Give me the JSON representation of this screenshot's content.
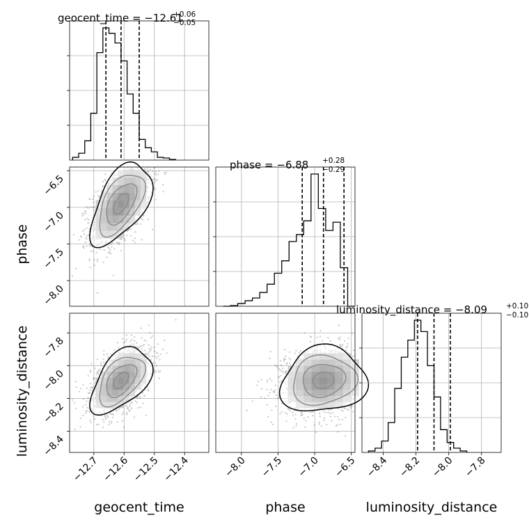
{
  "chart_data": {
    "type": "corner",
    "parameters": [
      "geocent_time",
      "phase",
      "luminosity_distance"
    ],
    "titles": [
      {
        "param": "geocent_time",
        "label": "geocent_time",
        "median": "−12.61",
        "plus": "+0.06",
        "minus": "−0.05"
      },
      {
        "param": "phase",
        "label": "phase",
        "median": "−6.88",
        "plus": "+0.28",
        "minus": "−0.29"
      },
      {
        "param": "luminosity_distance",
        "label": "luminosity_distance",
        "median": "−8.09",
        "plus": "+0.10",
        "minus": "−0.10"
      }
    ],
    "ranges": {
      "geocent_time": [
        -12.78,
        -12.32
      ],
      "phase": [
        -8.35,
        -6.45
      ],
      "luminosity_distance": [
        -8.53,
        -7.68
      ]
    },
    "ticks": {
      "geocent_time": [
        -12.7,
        -12.6,
        -12.5,
        -12.4
      ],
      "phase": [
        -8.0,
        -7.5,
        -7.0,
        -6.5
      ],
      "luminosity_distance": [
        -8.4,
        -8.2,
        -8.0,
        -7.8
      ]
    },
    "tick_labels": {
      "geocent_time": [
        "−12.7",
        "−12.6",
        "−12.5",
        "−12.4"
      ],
      "phase": [
        "−8.0",
        "−7.5",
        "−7.0",
        "−6.5"
      ],
      "luminosity_distance": [
        "−8.4",
        "−8.2",
        "−8.0",
        "−7.8"
      ]
    },
    "quantiles": {
      "geocent_time": [
        -12.66,
        -12.61,
        -12.55
      ],
      "phase": [
        -7.17,
        -6.88,
        -6.6
      ],
      "luminosity_distance": [
        -8.19,
        -8.09,
        -7.99
      ]
    },
    "histograms": {
      "geocent_time": {
        "edges_start": -12.77,
        "bin_width": 0.02,
        "counts": [
          0.02,
          0.05,
          0.14,
          0.34,
          0.78,
          0.96,
          0.92,
          0.85,
          0.72,
          0.48,
          0.34,
          0.15,
          0.09,
          0.06,
          0.02,
          0.015,
          0.005
        ]
      },
      "phase": {
        "edges_start": -8.25,
        "bin_width": 0.1,
        "counts": [
          0.0,
          0.005,
          0.02,
          0.04,
          0.06,
          0.1,
          0.16,
          0.24,
          0.33,
          0.47,
          0.52,
          0.62,
          0.96,
          0.71,
          0.55,
          0.61,
          0.28,
          0.0
        ]
      },
      "luminosity_distance": {
        "edges_start": -8.49,
        "bin_width": 0.04,
        "counts": [
          0.01,
          0.03,
          0.08,
          0.21,
          0.45,
          0.67,
          0.79,
          0.93,
          0.85,
          0.61,
          0.39,
          0.16,
          0.07,
          0.03,
          0.01
        ]
      }
    },
    "joint": [
      {
        "x": "geocent_time",
        "y": "phase",
        "mean": [
          -12.61,
          -6.95
        ],
        "sd": [
          0.05,
          0.28
        ],
        "rho": 0.55
      },
      {
        "x": "geocent_time",
        "y": "luminosity_distance",
        "mean": [
          -12.61,
          -8.09
        ],
        "sd": [
          0.05,
          0.1
        ],
        "rho": 0.5
      },
      {
        "x": "phase",
        "y": "luminosity_distance",
        "mean": [
          -6.88,
          -8.09
        ],
        "sd": [
          0.29,
          0.1
        ],
        "rho": 0.1
      }
    ],
    "grid": true,
    "colors": {
      "line": "#000000",
      "grid": "#b0b0b0",
      "points": "#000000"
    }
  }
}
